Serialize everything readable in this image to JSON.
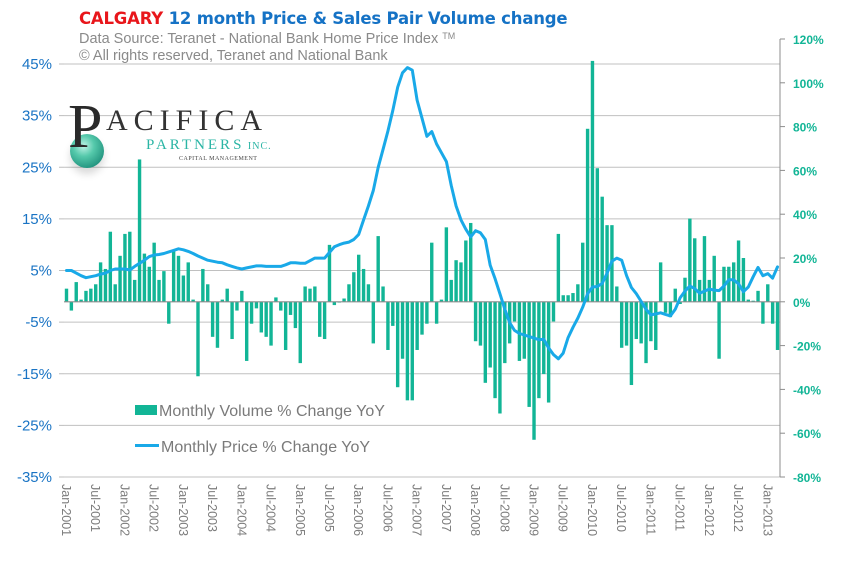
{
  "header": {
    "title_city": "CALGARY",
    "title_rest": " 12 month Price & Sales Pair Volume change",
    "source_line": "Data Source: Teranet  - National  Bank Home Price Index",
    "source_tm": "TM",
    "copyright_line": "© All rights reserved, Teranet and National Bank"
  },
  "logo": {
    "letter": "P",
    "name": "ACIFICA",
    "partners": "PARTNERS",
    "inc": " INC.",
    "tagline": "CAPITAL MANAGEMENT"
  },
  "colors": {
    "volume_bar": "#12b596",
    "price_line": "#19a9e8",
    "left_axis_text": "#1a74c4",
    "right_axis_text": "#12b596",
    "gridline": "#c0c0c0",
    "title_city": "#e8161b",
    "title_rest": "#1572c5"
  },
  "chart_data": {
    "type": "bar+line",
    "title": "CALGARY 12 month Price & Sales Pair Volume change",
    "xlabel": "",
    "start_month": "Jan-2001",
    "x_tick_labels": [
      "Jan-2001",
      "Jul-2001",
      "Jan-2002",
      "Jul-2002",
      "Jan-2003",
      "Jul-2003",
      "Jan-2004",
      "Jul-2004",
      "Jan-2005",
      "Jul-2005",
      "Jan-2006",
      "Jul-2006",
      "Jan-2007",
      "Jul-2007",
      "Jan-2008",
      "Jul-2008",
      "Jan-2009",
      "Jul-2009",
      "Jan-2010",
      "Jul-2010",
      "Jan-2011",
      "Jul-2011",
      "Jan-2012",
      "Jul-2012",
      "Jan-2013"
    ],
    "left_axis": {
      "label": "Monthly Price % Change YoY",
      "ylim": [
        -35,
        45
      ],
      "ticks": [
        45,
        35,
        25,
        15,
        5,
        -5,
        -15,
        -25,
        -35
      ],
      "tick_labels": [
        "45%",
        "35%",
        "25%",
        "15%",
        "5%",
        "-5%",
        "-15%",
        "-25%",
        "-35%"
      ]
    },
    "right_axis": {
      "label": "Monthly Volume % Change YoY",
      "ylim": [
        -80,
        120
      ],
      "ticks": [
        120,
        100,
        80,
        60,
        40,
        20,
        0,
        -20,
        -40,
        -60,
        -80
      ],
      "tick_labels": [
        "120%",
        "100%",
        "80%",
        "60%",
        "40%",
        "20%",
        "0%",
        "-20%",
        "-40%",
        "-60%",
        "-80%"
      ]
    },
    "grid": true,
    "legend_position": "bottom-left",
    "series": [
      {
        "name": "Monthly Volume % Change YoY",
        "type": "bar",
        "axis": "right",
        "values": [
          6,
          -4,
          9,
          1,
          5,
          6,
          8,
          18,
          15,
          32,
          8,
          21,
          31,
          32,
          10,
          65,
          22,
          16,
          27,
          10,
          14,
          -10,
          23,
          21,
          12,
          18,
          1,
          -34,
          15,
          8,
          -16,
          -21,
          1,
          6,
          -17,
          -4,
          5,
          -27,
          -10,
          -3,
          -14,
          -16,
          -20,
          2,
          -4,
          -22,
          -6,
          -12,
          -28,
          7,
          6,
          7,
          -16,
          -17,
          26,
          -1.5,
          0,
          1.5,
          8,
          13.5,
          21.5,
          15,
          8,
          -19,
          30,
          7,
          -22,
          -11,
          -39,
          -26,
          -45,
          -45,
          -22,
          -15,
          -10,
          27,
          -10,
          1,
          34,
          10,
          19,
          18,
          28,
          36,
          -18,
          -20,
          -37,
          -30,
          -44,
          -51,
          -28,
          -19,
          -9,
          -27,
          -26,
          -48,
          -63,
          -44,
          -33,
          -46,
          -9,
          31,
          3,
          3,
          4,
          8,
          27,
          79,
          110,
          61,
          48,
          35,
          35,
          7,
          -21,
          -20,
          -38,
          -17,
          -19,
          -28,
          -18,
          -22,
          18,
          -5,
          -7,
          6,
          -1,
          11,
          38,
          29,
          10,
          30,
          10,
          21,
          -26,
          16,
          16,
          18,
          28,
          20,
          1,
          0.5,
          5,
          -10,
          8,
          -10,
          -22
        ]
      },
      {
        "name": "Monthly Price % Change YoY",
        "type": "line",
        "axis": "left",
        "values": [
          5,
          5,
          4.5,
          4,
          3.6,
          3.8,
          4,
          4.3,
          4.5,
          5,
          5.3,
          5.3,
          5.3,
          5.1,
          5.8,
          6.4,
          7,
          7.7,
          8,
          8.1,
          8.3,
          8.6,
          8.9,
          9.2,
          9,
          8.7,
          8.3,
          7.8,
          7.4,
          7,
          6.8,
          6.6,
          6.5,
          6.1,
          5.8,
          5.5,
          5.3,
          5.5,
          5.7,
          5.9,
          5.9,
          5.8,
          5.8,
          5.8,
          5.8,
          6.1,
          6.5,
          6.5,
          6.4,
          6.4,
          6.9,
          7.4,
          7.4,
          7.4,
          8.5,
          9.6,
          10,
          10.3,
          10.5,
          11,
          12,
          14.8,
          17.5,
          20.5,
          25,
          28.5,
          32,
          36,
          40.5,
          43.3,
          44.3,
          43.8,
          38,
          34.5,
          31,
          31.9,
          29.5,
          27.8,
          26.1,
          21.5,
          17.5,
          14.8,
          13,
          11.5,
          12.7,
          12.3,
          11,
          6,
          3.4,
          0.5,
          -2.5,
          -5.1,
          -6.6,
          -7.2,
          -7.5,
          -7.8,
          -8.1,
          -8.4,
          -8.3,
          -10,
          -11.3,
          -12.1,
          -11,
          -8,
          -6,
          -4.2,
          -2.1,
          0.5,
          1.8,
          1.9,
          2.5,
          4.5,
          6.8,
          7.4,
          7,
          4,
          1.7,
          0.5,
          -1,
          -2.5,
          -3.6,
          -3.4,
          -3.2,
          -3.5,
          -3.8,
          -2.5,
          -0.3,
          1,
          2,
          1.5,
          0.6,
          1,
          1.4,
          1.2,
          1.1,
          2,
          3.2,
          3.2,
          2.4,
          0.9,
          1.8,
          3.8,
          5.6,
          4,
          4.4,
          3.5,
          5.7
        ]
      }
    ]
  }
}
